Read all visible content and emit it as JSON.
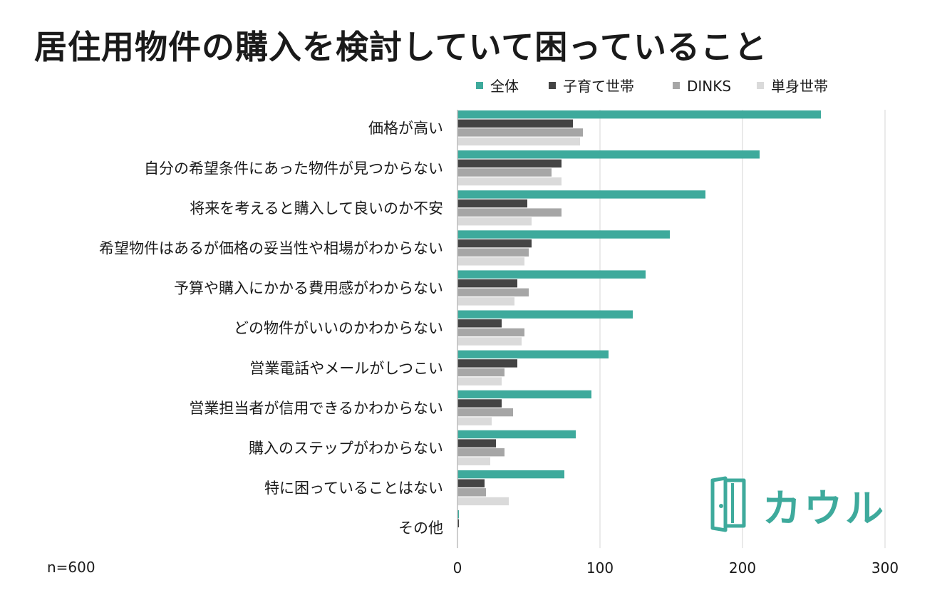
{
  "chart_data": {
    "type": "bar",
    "orientation": "horizontal",
    "title": "居住用物件の購入を検討していて困っていること",
    "note": "n=600",
    "categories": [
      "価格が高い",
      "自分の希望条件にあった物件が見つからない",
      "将来を考えると購入して良いのか不安",
      "希望物件はあるが価格の妥当性や相場がわからない",
      "予算や購入にかかる費用感がわからない",
      "どの物件がいいのかわからない",
      "営業電話やメールがしつこい",
      "営業担当者が信用できるかわからない",
      "購入のステップがわからない",
      "特に困っていることはない",
      "その他"
    ],
    "series": [
      {
        "name": "全体",
        "color": "#3eaa9c",
        "values": [
          255,
          212,
          174,
          149,
          132,
          123,
          106,
          94,
          83,
          75,
          1
        ]
      },
      {
        "name": "子育て世帯",
        "color": "#444444",
        "values": [
          81,
          73,
          49,
          52,
          42,
          31,
          42,
          31,
          27,
          19,
          1
        ]
      },
      {
        "name": "DINKS",
        "color": "#a6a6a6",
        "values": [
          88,
          66,
          73,
          50,
          50,
          47,
          33,
          39,
          33,
          20,
          0
        ]
      },
      {
        "name": "単身世帯",
        "color": "#dadada",
        "values": [
          86,
          73,
          52,
          47,
          40,
          45,
          31,
          24,
          23,
          36,
          0
        ]
      }
    ],
    "xlim": [
      0,
      300
    ],
    "xticks": [
      0,
      100,
      200,
      300
    ],
    "grid": true,
    "legend": "top-right"
  },
  "logo": {
    "text": "カウル",
    "icon": "door-icon",
    "color": "#3eaa9c"
  }
}
